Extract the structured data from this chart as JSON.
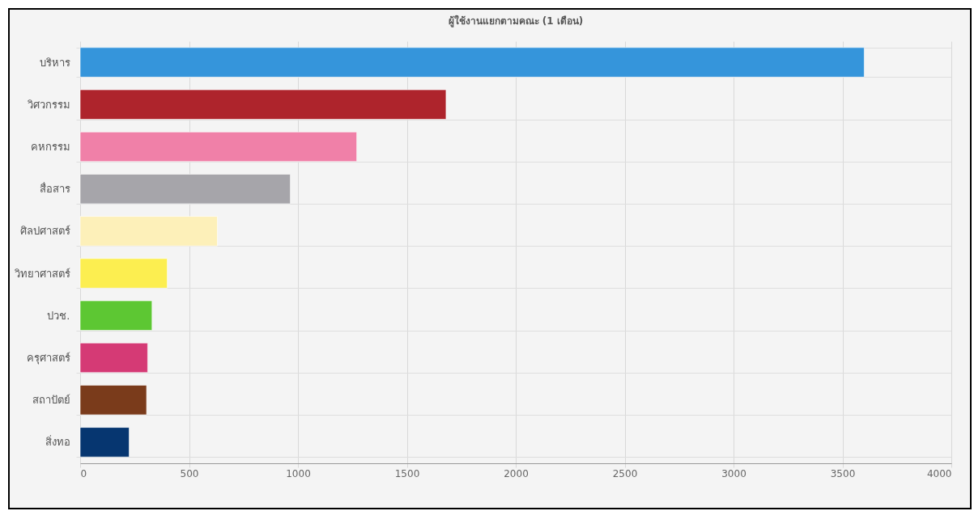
{
  "chart_data": {
    "type": "bar",
    "orientation": "horizontal",
    "title": "ผู้ใช้งานแยกตามคณะ (1 เดือน)",
    "categories": [
      "บริหาร",
      "วิศวกรรม",
      "คหกรรม",
      "สื่อสาร",
      "ศิลปศาสตร์",
      "วิทยาศาสตร์",
      "ปวช.",
      "ครุศาสตร์",
      "สถาปัตย์",
      "สิ่งทอ"
    ],
    "values": [
      3600,
      1680,
      1270,
      965,
      630,
      400,
      330,
      310,
      305,
      225
    ],
    "colors": [
      "#3595db",
      "#ae242c",
      "#f080a8",
      "#a6a5aa",
      "#fdf0b9",
      "#fcee50",
      "#5dc733",
      "#d53a75",
      "#7a3b1b",
      "#063670"
    ],
    "xlim": [
      0,
      4000
    ],
    "xticks": [
      0,
      500,
      1000,
      1500,
      2000,
      2500,
      3000,
      3500,
      4000
    ],
    "grid": true
  }
}
